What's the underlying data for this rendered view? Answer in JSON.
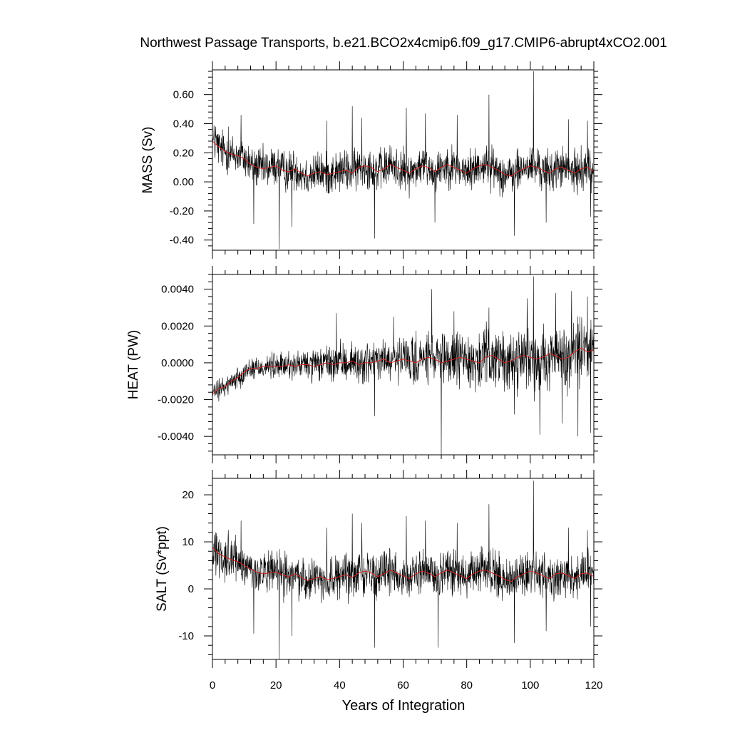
{
  "chart_data": {
    "type": "line",
    "title": "Northwest Passage Transports, b.e21.BCO2x4cmip6.f09_g17.CMIP6-abrupt4xCO2.001",
    "xlabel": "Years of Integration",
    "xlim": [
      0,
      120
    ],
    "xticks": [
      0,
      20,
      40,
      60,
      80,
      100,
      120
    ],
    "xtick_labels": [
      "0",
      "20",
      "40",
      "60",
      "80",
      "100",
      "120"
    ],
    "series_colors": {
      "raw": "#000000",
      "smoothed": "#d62020"
    },
    "panels": [
      {
        "name": "mass",
        "ylabel": "MASS (Sv)",
        "ylim": [
          -0.47,
          0.77
        ],
        "yticks": [
          -0.4,
          -0.2,
          0.0,
          0.2,
          0.4,
          0.6
        ],
        "ytick_labels": [
          "-0.40",
          "-0.20",
          "0.00",
          "0.20",
          "0.40",
          "0.60"
        ],
        "smoothed": {
          "x": [
            0,
            2,
            4,
            6,
            8,
            10,
            12,
            14,
            16,
            18,
            20,
            22,
            24,
            26,
            28,
            30,
            32,
            34,
            36,
            38,
            40,
            42,
            44,
            46,
            48,
            50,
            52,
            54,
            56,
            58,
            60,
            62,
            64,
            66,
            68,
            70,
            72,
            74,
            76,
            78,
            80,
            82,
            84,
            86,
            88,
            90,
            92,
            94,
            96,
            98,
            100,
            102,
            104,
            106,
            108,
            110,
            112,
            114,
            116,
            118,
            120
          ],
          "y": [
            0.28,
            0.24,
            0.21,
            0.19,
            0.18,
            0.16,
            0.12,
            0.1,
            0.09,
            0.1,
            0.11,
            0.08,
            0.07,
            0.09,
            0.06,
            0.04,
            0.06,
            0.07,
            0.05,
            0.06,
            0.07,
            0.08,
            0.06,
            0.1,
            0.11,
            0.1,
            0.07,
            0.09,
            0.12,
            0.1,
            0.08,
            0.06,
            0.09,
            0.11,
            0.1,
            0.07,
            0.1,
            0.12,
            0.1,
            0.08,
            0.06,
            0.09,
            0.11,
            0.12,
            0.1,
            0.08,
            0.05,
            0.04,
            0.07,
            0.09,
            0.11,
            0.1,
            0.08,
            0.06,
            0.09,
            0.1,
            0.08,
            0.06,
            0.09,
            0.1,
            0.07
          ]
        },
        "raw": {
          "noise_amplitude": 0.12,
          "spikes": [
            [
              1,
              0.38
            ],
            [
              5,
              0.38
            ],
            [
              9,
              0.46
            ],
            [
              13,
              -0.29
            ],
            [
              21,
              -0.46
            ],
            [
              25,
              -0.31
            ],
            [
              36,
              0.42
            ],
            [
              44,
              0.52
            ],
            [
              47,
              0.44
            ],
            [
              51,
              -0.39
            ],
            [
              61,
              0.51
            ],
            [
              67,
              0.47
            ],
            [
              70,
              -0.28
            ],
            [
              77,
              0.46
            ],
            [
              87,
              0.6
            ],
            [
              95,
              -0.37
            ],
            [
              101,
              0.76
            ],
            [
              105,
              -0.28
            ],
            [
              112,
              0.43
            ],
            [
              118,
              0.42
            ],
            [
              119,
              -0.24
            ]
          ]
        }
      },
      {
        "name": "heat",
        "ylabel": "HEAT (PW)",
        "ylim": [
          -0.005,
          0.0048
        ],
        "yticks": [
          -0.004,
          -0.002,
          0.0,
          0.002,
          0.004
        ],
        "ytick_labels": [
          "-0.0040",
          "-0.0020",
          "0.0000",
          "0.0020",
          "0.0040"
        ],
        "smoothed": {
          "x": [
            0,
            2,
            4,
            6,
            8,
            10,
            12,
            14,
            16,
            18,
            20,
            22,
            24,
            26,
            28,
            30,
            32,
            34,
            36,
            38,
            40,
            42,
            44,
            46,
            48,
            50,
            52,
            54,
            56,
            58,
            60,
            62,
            64,
            66,
            68,
            70,
            72,
            74,
            76,
            78,
            80,
            82,
            84,
            86,
            88,
            90,
            92,
            94,
            96,
            98,
            100,
            102,
            104,
            106,
            108,
            110,
            112,
            114,
            116,
            118,
            120
          ],
          "y": [
            -0.0017,
            -0.0014,
            -0.0013,
            -0.001,
            -0.0008,
            -0.0005,
            -0.0003,
            -0.0003,
            -0.0002,
            -0.0002,
            -0.0002,
            -0.0002,
            -0.0001,
            -0.0002,
            -0.0001,
            -0.0001,
            -0.0002,
            -0.0001,
            0.0,
            -0.0001,
            0.0,
            0.0,
            0.0001,
            -0.0001,
            0.0,
            0.0,
            0.0001,
            0.0002,
            0.0,
            0.0001,
            0.0002,
            0.0001,
            0.0,
            0.0002,
            0.0003,
            0.0002,
            0.0,
            0.0001,
            0.0002,
            0.0003,
            0.0002,
            0.0001,
            0.0,
            0.0003,
            0.0004,
            0.0002,
            0.0,
            0.0001,
            0.0003,
            0.0004,
            0.0003,
            0.0002,
            0.0003,
            0.0005,
            0.0004,
            0.0002,
            0.0003,
            0.0006,
            0.0008,
            0.0006,
            0.0007
          ]
        },
        "raw": {
          "noise_amplitude_start": 0.0004,
          "noise_amplitude_end": 0.0017,
          "spikes": [
            [
              2,
              -0.0021
            ],
            [
              39,
              0.0027
            ],
            [
              51,
              -0.0029
            ],
            [
              57,
              0.0025
            ],
            [
              69,
              0.004
            ],
            [
              72,
              -0.005
            ],
            [
              76,
              0.0028
            ],
            [
              87,
              0.003
            ],
            [
              95,
              -0.0028
            ],
            [
              99,
              0.0035
            ],
            [
              101,
              0.0047
            ],
            [
              103,
              -0.0039
            ],
            [
              108,
              0.0038
            ],
            [
              110,
              -0.0033
            ],
            [
              113,
              0.0039
            ],
            [
              115,
              -0.004
            ],
            [
              118,
              0.0036
            ],
            [
              119,
              -0.0038
            ]
          ]
        }
      },
      {
        "name": "salt",
        "ylabel": "SALT (Sv*ppt)",
        "ylim": [
          -15,
          23.5
        ],
        "yticks": [
          -10,
          0,
          10,
          20
        ],
        "ytick_labels": [
          "-10",
          "0",
          "10",
          "20"
        ],
        "smoothed": {
          "x": [
            0,
            2,
            4,
            6,
            8,
            10,
            12,
            14,
            16,
            18,
            20,
            22,
            24,
            26,
            28,
            30,
            32,
            34,
            36,
            38,
            40,
            42,
            44,
            46,
            48,
            50,
            52,
            54,
            56,
            58,
            60,
            62,
            64,
            66,
            68,
            70,
            72,
            74,
            76,
            78,
            80,
            82,
            84,
            86,
            88,
            90,
            92,
            94,
            96,
            98,
            100,
            102,
            104,
            106,
            108,
            110,
            112,
            114,
            116,
            118,
            120
          ],
          "y": [
            8.8,
            7.5,
            6.8,
            6.2,
            5.8,
            5.0,
            4.2,
            3.6,
            3.2,
            3.4,
            3.6,
            3.0,
            2.6,
            3.2,
            2.4,
            1.8,
            2.2,
            2.6,
            2.0,
            2.2,
            2.6,
            3.0,
            2.4,
            3.4,
            3.8,
            3.4,
            2.6,
            3.2,
            4.0,
            3.4,
            2.8,
            2.2,
            3.2,
            3.8,
            3.4,
            2.6,
            3.4,
            4.0,
            3.4,
            2.8,
            2.2,
            3.2,
            3.8,
            4.0,
            3.4,
            2.8,
            2.0,
            1.6,
            2.6,
            3.2,
            3.8,
            3.4,
            2.8,
            2.2,
            3.2,
            3.4,
            2.8,
            2.2,
            3.2,
            3.4,
            2.6
          ]
        },
        "raw": {
          "noise_amplitude": 3.8,
          "spikes": [
            [
              1,
              12.0
            ],
            [
              5,
              12.5
            ],
            [
              9,
              14.5
            ],
            [
              13,
              -9.5
            ],
            [
              21,
              -15.0
            ],
            [
              25,
              -10.0
            ],
            [
              36,
              13.0
            ],
            [
              44,
              16.0
            ],
            [
              47,
              14.0
            ],
            [
              51,
              -12.5
            ],
            [
              61,
              15.5
            ],
            [
              67,
              14.5
            ],
            [
              71,
              -12.5
            ],
            [
              77,
              14.0
            ],
            [
              87,
              18.0
            ],
            [
              95,
              -11.5
            ],
            [
              101,
              23.0
            ],
            [
              105,
              -9.0
            ],
            [
              112,
              13.0
            ],
            [
              118,
              12.5
            ],
            [
              119,
              -8.0
            ]
          ]
        }
      }
    ]
  }
}
